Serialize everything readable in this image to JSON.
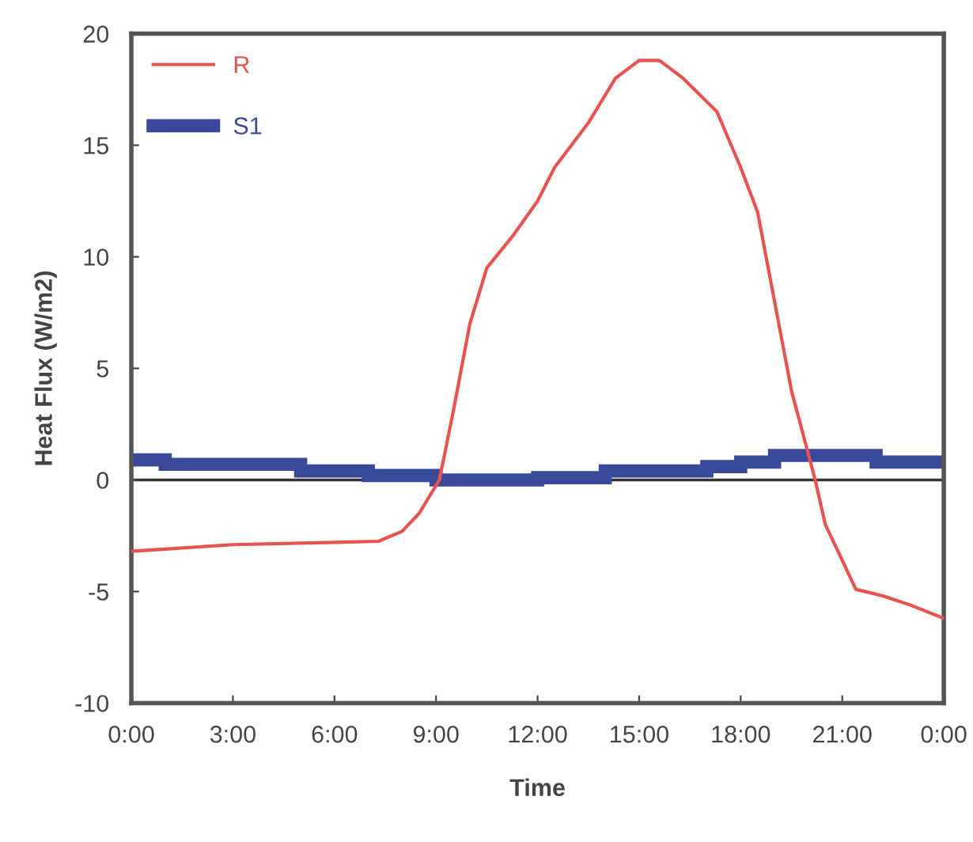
{
  "chart_data": {
    "type": "line",
    "xlabel": "Time",
    "ylabel": "Heat Flux (W/m2)",
    "xlim": [
      0,
      24
    ],
    "ylim": [
      -10,
      20
    ],
    "xticks": [
      {
        "value": 0,
        "label": "0:00"
      },
      {
        "value": 3,
        "label": "3:00"
      },
      {
        "value": 6,
        "label": "6:00"
      },
      {
        "value": 9,
        "label": "9:00"
      },
      {
        "value": 12,
        "label": "12:00"
      },
      {
        "value": 15,
        "label": "15:00"
      },
      {
        "value": 18,
        "label": "18:00"
      },
      {
        "value": 21,
        "label": "21:00"
      },
      {
        "value": 24,
        "label": "0:00"
      }
    ],
    "yticks": [
      -10,
      -5,
      0,
      5,
      10,
      15,
      20
    ],
    "ref_lines": [
      {
        "axis": "y",
        "value": 0,
        "color": "#333333"
      }
    ],
    "legend": "top left",
    "grid": false,
    "series": [
      {
        "name": "R",
        "color": "#e8524f",
        "x": [
          0,
          1,
          3,
          6,
          7.3,
          8,
          8.5,
          9.1,
          9.5,
          10,
          10.5,
          11.3,
          12,
          12.5,
          13.5,
          14.3,
          15,
          15.6,
          16.3,
          17.3,
          18,
          18.5,
          19,
          19.5,
          20.2,
          20.5,
          21,
          21.4,
          22.2,
          23,
          24
        ],
        "values": [
          -3.2,
          -3.1,
          -2.9,
          -2.8,
          -2.75,
          -2.3,
          -1.5,
          0,
          3,
          7,
          9.5,
          11,
          12.5,
          14,
          16,
          18,
          18.8,
          18.8,
          18,
          16.5,
          14,
          12,
          8,
          4,
          0,
          -2,
          -3.6,
          -4.9,
          -5.2,
          -5.6,
          -6.2
        ]
      },
      {
        "name": "S1",
        "color": "#3a4a9a",
        "type": "step",
        "x": [
          0,
          1,
          5,
          7,
          9,
          12,
          14,
          17,
          18,
          19,
          22,
          24
        ],
        "values": [
          0.9,
          0.7,
          0.4,
          0.2,
          0,
          0.1,
          0.4,
          0.6,
          0.8,
          1.1,
          0.8,
          0.8
        ]
      }
    ]
  }
}
